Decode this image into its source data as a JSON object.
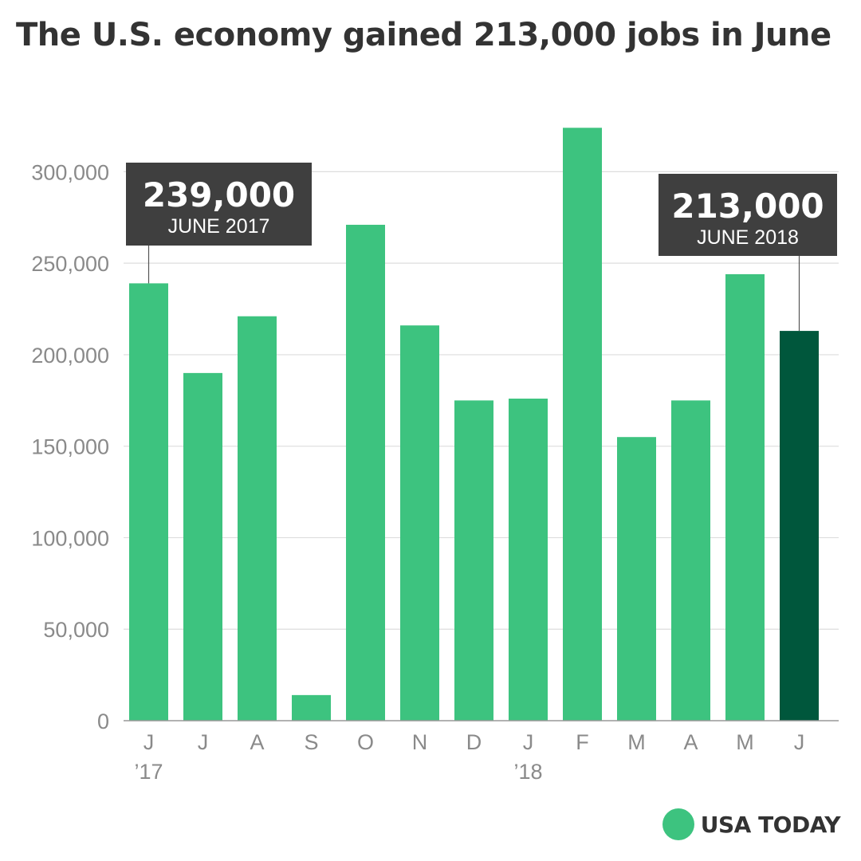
{
  "title": "The U.S. economy gained 213,000 jobs in June",
  "colors": {
    "bar": "#3dc37f",
    "bar_highlight": "#00573c",
    "callout_bg": "#3f3f3f",
    "grid": "#dddddd",
    "text": "#333333",
    "tick": "#8a8a8a",
    "logo_dot": "#3dc37f"
  },
  "chart_data": {
    "type": "bar",
    "title": "The U.S. economy gained 213,000 jobs in June",
    "xlabel": "",
    "ylabel": "",
    "ylim": [
      0,
      325000
    ],
    "yticks": [
      0,
      50000,
      100000,
      150000,
      200000,
      250000,
      300000
    ],
    "ytick_labels": [
      "0",
      "50,000",
      "100,000",
      "150,000",
      "200,000",
      "250,000",
      "300,000"
    ],
    "categories": [
      "J",
      "J",
      "A",
      "S",
      "O",
      "N",
      "D",
      "J",
      "F",
      "M",
      "A",
      "M",
      "J"
    ],
    "year_labels": [
      "’17",
      "",
      "",
      "",
      "",
      "",
      "",
      "’18",
      "",
      "",
      "",
      "",
      ""
    ],
    "values": [
      239000,
      190000,
      221000,
      14000,
      271000,
      216000,
      175000,
      176000,
      324000,
      155000,
      175000,
      244000,
      213000
    ],
    "highlight_index": 12,
    "grid": true,
    "annotations": [
      {
        "index": 0,
        "value": "239,000",
        "label": "JUNE 2017"
      },
      {
        "index": 12,
        "value": "213,000",
        "label": "JUNE 2018"
      }
    ]
  },
  "logo": {
    "text": "USA TODAY",
    "icon": "usa-today-circle-icon"
  }
}
